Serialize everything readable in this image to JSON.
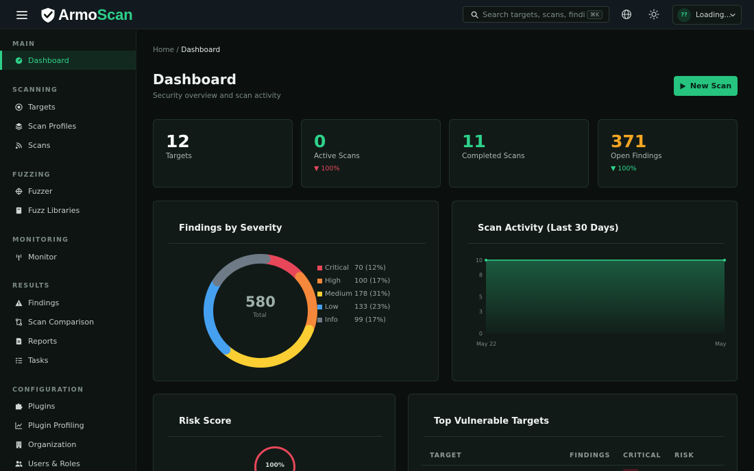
{
  "header": {
    "logo_text_a": "Armo",
    "logo_text_b": "Scan",
    "search_placeholder": "Search targets, scans, findings...",
    "search_shortcut": "⌘K",
    "user_initials": "??",
    "user_name": "Loading..."
  },
  "sidebar": {
    "sections": [
      {
        "title": "MAIN",
        "items": [
          {
            "label": "Dashboard",
            "icon": "dashboard-icon",
            "active": true
          }
        ]
      },
      {
        "title": "SCANNING",
        "items": [
          {
            "label": "Targets",
            "icon": "target-icon"
          },
          {
            "label": "Scan Profiles",
            "icon": "layers-icon"
          },
          {
            "label": "Scans",
            "icon": "radar-icon"
          }
        ]
      },
      {
        "title": "FUZZING",
        "items": [
          {
            "label": "Fuzzer",
            "icon": "crosshair-icon"
          },
          {
            "label": "Fuzz Libraries",
            "icon": "book-icon"
          }
        ]
      },
      {
        "title": "MONITORING",
        "items": [
          {
            "label": "Monitor",
            "icon": "antenna-icon"
          }
        ]
      },
      {
        "title": "RESULTS",
        "items": [
          {
            "label": "Findings",
            "icon": "warning-icon"
          },
          {
            "label": "Scan Comparison",
            "icon": "compare-icon"
          },
          {
            "label": "Reports",
            "icon": "report-icon"
          },
          {
            "label": "Tasks",
            "icon": "tasks-icon"
          }
        ]
      },
      {
        "title": "CONFIGURATION",
        "items": [
          {
            "label": "Plugins",
            "icon": "puzzle-icon"
          },
          {
            "label": "Plugin Profiling",
            "icon": "chart-line-icon"
          },
          {
            "label": "Organization",
            "icon": "building-icon"
          },
          {
            "label": "Users & Roles",
            "icon": "users-icon"
          }
        ]
      }
    ]
  },
  "main": {
    "breadcrumb_home": "Home",
    "breadcrumb_sep": "/",
    "breadcrumb_current": "Dashboard",
    "title": "Dashboard",
    "subtitle": "Security overview and scan activity",
    "new_scan_label": "New Scan",
    "stats": [
      {
        "value": "12",
        "label": "Targets",
        "delta": "",
        "color": "#ffffff"
      },
      {
        "value": "0",
        "label": "Active Scans",
        "delta": "▼ 100%",
        "color": "#2ed18a",
        "delta_color": "#e2475b"
      },
      {
        "value": "11",
        "label": "Completed Scans",
        "delta": "",
        "color": "#2ed18a"
      },
      {
        "value": "371",
        "label": "Open Findings",
        "delta": "▼ 100%",
        "color": "#f5a623",
        "delta_color": "#2ed18a"
      }
    ],
    "findings_title": "Findings by Severity",
    "findings_total": "580",
    "findings_total_label": "Total",
    "activity_title": "Scan Activity (Last 30 Days)",
    "risk_title": "Risk Score",
    "risk_value": "100%",
    "top_targets_title": "Top Vulnerable Targets",
    "table_headers": [
      "TARGET",
      "FINDINGS",
      "CRITICAL",
      "RISK"
    ]
  },
  "chart_data": [
    {
      "type": "pie",
      "title": "Findings by Severity",
      "categories": [
        "Critical",
        "High",
        "Medium",
        "Low",
        "Info"
      ],
      "values": [
        70,
        100,
        178,
        133,
        99
      ],
      "percent_labels": [
        "70 (12%)",
        "100 (17%)",
        "178 (31%)",
        "133 (23%)",
        "99 (17%)"
      ],
      "colors": [
        "#e8475a",
        "#f5883a",
        "#fbcf33",
        "#46a0f0",
        "#6e7a86"
      ],
      "total": 580
    },
    {
      "type": "area",
      "title": "Scan Activity (Last 30 Days)",
      "x": [
        "May 22",
        "May"
      ],
      "series": [
        {
          "values": [
            10,
            10
          ]
        }
      ],
      "yticks": [
        0,
        3,
        5,
        8,
        10
      ],
      "ylim": [
        0,
        10
      ],
      "color": "#2ed18a"
    }
  ]
}
